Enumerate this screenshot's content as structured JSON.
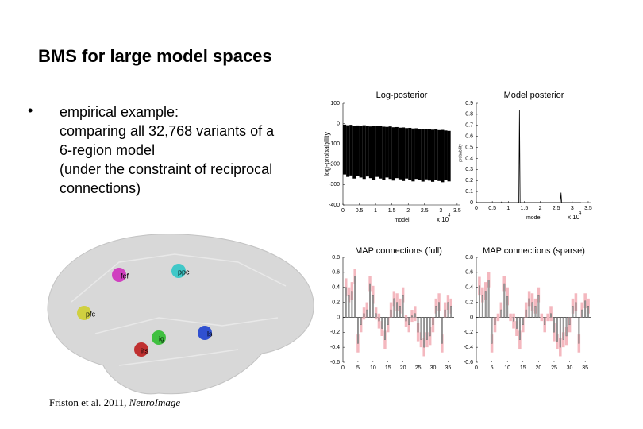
{
  "title": "BMS for large model spaces",
  "bullet": {
    "lines": [
      "empirical example:",
      "comparing all 32,768 variants of a",
      "6-region model",
      "(under the constraint of reciprocal",
      "connections)"
    ]
  },
  "citation": {
    "text": "Friston et al. 2011, ",
    "journal": "NeuroImage"
  },
  "brain": {
    "nodes": [
      {
        "label": "fef"
      },
      {
        "label": "ppc"
      },
      {
        "label": "pfc"
      },
      {
        "label": "ig"
      },
      {
        "label": "ls"
      },
      {
        "label": "its"
      }
    ]
  },
  "chart_data": [
    {
      "type": "area",
      "title": "Log-posterior",
      "xlabel": "model",
      "ylabel": "log-probability",
      "x_multiplier": "x 10",
      "x_exponent": "4",
      "x": [
        0,
        0.1,
        0.2,
        0.3,
        0.4,
        0.5,
        0.6,
        0.7,
        0.8,
        0.9,
        1.0,
        1.1,
        1.2,
        1.3,
        1.4,
        1.5,
        1.6,
        1.7,
        1.8,
        1.9,
        2.0,
        2.1,
        2.2,
        2.3,
        2.4,
        2.5,
        2.6,
        2.7,
        2.8,
        2.9,
        3.0,
        3.1,
        3.2
      ],
      "series": [
        {
          "color": "#000000",
          "values": [
            -5,
            -8,
            -6,
            -10,
            -9,
            -12,
            -8,
            -11,
            -14,
            -10,
            -13,
            -12,
            -15,
            -16,
            -14,
            -18,
            -17,
            -20,
            -19,
            -22,
            -21,
            -24,
            -23,
            -26,
            -25,
            -28,
            -27,
            -30,
            -29,
            -32,
            -31,
            -34,
            -36
          ]
        },
        {
          "color": "#000000",
          "values": [
            -250,
            -262,
            -255,
            -270,
            -258,
            -265,
            -272,
            -260,
            -268,
            -275,
            -262,
            -270,
            -278,
            -265,
            -272,
            -280,
            -268,
            -274,
            -282,
            -270,
            -276,
            -284,
            -272,
            -278,
            -285,
            -274,
            -280,
            -286,
            -276,
            -282,
            -288,
            -278,
            -284
          ]
        }
      ],
      "xlim": [
        0,
        3.6
      ],
      "xticks": [
        0,
        0.5,
        1,
        1.5,
        2,
        2.5,
        3,
        3.5
      ],
      "ylim": [
        -400,
        100
      ],
      "yticks": [
        -400,
        -300,
        -200,
        -100,
        0,
        100
      ]
    },
    {
      "type": "line",
      "title": "Model posterior",
      "xlabel": "model",
      "ylabel": "probability",
      "x_multiplier": "x 10",
      "x_exponent": "4",
      "x": [
        0,
        0.78,
        0.8,
        0.82,
        1.33,
        1.35,
        1.37,
        2.63,
        2.65,
        2.67,
        3.2768
      ],
      "series": [
        {
          "color": "#000000",
          "values": [
            0,
            0,
            0.01,
            0,
            0,
            0.84,
            0,
            0,
            0.09,
            0,
            0
          ]
        }
      ],
      "xlim": [
        0,
        3.6
      ],
      "xticks": [
        0,
        0.5,
        1,
        1.5,
        2,
        2.5,
        3,
        3.5
      ],
      "ylim": [
        0,
        0.9
      ],
      "yticks": [
        0,
        0.1,
        0.2,
        0.3,
        0.4,
        0.5,
        0.6,
        0.7,
        0.8,
        0.9
      ]
    },
    {
      "type": "bar",
      "title": "MAP connections (full)",
      "color": "#a0a0a0",
      "error_color": "#f4b8bf",
      "x": [
        1,
        2,
        3,
        4,
        5,
        6,
        7,
        8,
        9,
        10,
        11,
        12,
        13,
        14,
        15,
        16,
        17,
        18,
        19,
        20,
        21,
        22,
        23,
        24,
        25,
        26,
        27,
        28,
        29,
        30,
        31,
        32,
        33,
        34,
        35,
        36
      ],
      "values": [
        0.4,
        0.3,
        0.35,
        0.55,
        -0.35,
        -0.1,
        0.05,
        0.1,
        0.45,
        0.3,
        0.05,
        -0.05,
        -0.15,
        -0.3,
        -0.1,
        0.1,
        0.25,
        0.2,
        0.15,
        0.3,
        -0.05,
        -0.1,
        0.02,
        0.05,
        -0.2,
        -0.3,
        -0.4,
        -0.3,
        -0.25,
        -0.1,
        0.15,
        0.2,
        -0.35,
        0.1,
        0.2,
        0.15
      ],
      "errors": [
        0.12,
        0.1,
        0.12,
        0.1,
        0.12,
        0.1,
        0.08,
        0.1,
        0.1,
        0.12,
        0.08,
        0.1,
        0.1,
        0.12,
        0.1,
        0.1,
        0.1,
        0.12,
        0.1,
        0.1,
        0.08,
        0.1,
        0.08,
        0.1,
        0.12,
        0.1,
        0.12,
        0.1,
        0.12,
        0.1,
        0.1,
        0.12,
        0.12,
        0.1,
        0.1,
        0.1
      ],
      "xlim": [
        0,
        37
      ],
      "xticks": [
        0,
        5,
        10,
        15,
        20,
        25,
        30,
        35
      ],
      "ylim": [
        -0.6,
        0.8
      ],
      "yticks": [
        -0.6,
        -0.4,
        -0.2,
        0,
        0.2,
        0.4,
        0.6,
        0.8
      ]
    },
    {
      "type": "bar",
      "title": "MAP connections (sparse)",
      "color": "#a0a0a0",
      "error_color": "#f4b8bf",
      "x": [
        1,
        2,
        3,
        4,
        5,
        6,
        7,
        8,
        9,
        10,
        11,
        12,
        13,
        14,
        15,
        16,
        17,
        18,
        19,
        20,
        21,
        22,
        23,
        24,
        25,
        26,
        27,
        28,
        29,
        30,
        31,
        32,
        33,
        34,
        35,
        36
      ],
      "values": [
        0.42,
        0.3,
        0.35,
        0.5,
        -0.35,
        -0.1,
        0,
        0.1,
        0.45,
        0.28,
        0,
        -0.05,
        -0.15,
        -0.3,
        -0.1,
        0.1,
        0.25,
        0.2,
        0.15,
        0.3,
        0,
        -0.1,
        0,
        0.05,
        -0.2,
        -0.32,
        -0.4,
        -0.3,
        -0.25,
        -0.1,
        0.15,
        0.2,
        -0.35,
        0.1,
        0.22,
        0.15
      ],
      "errors": [
        0.12,
        0.1,
        0.12,
        0.1,
        0.12,
        0.1,
        0.05,
        0.1,
        0.1,
        0.12,
        0.05,
        0.1,
        0.1,
        0.12,
        0.1,
        0.1,
        0.1,
        0.12,
        0.1,
        0.1,
        0.05,
        0.1,
        0.05,
        0.1,
        0.12,
        0.1,
        0.12,
        0.1,
        0.12,
        0.1,
        0.1,
        0.12,
        0.12,
        0.1,
        0.1,
        0.1
      ],
      "xlim": [
        0,
        37
      ],
      "xticks": [
        0,
        5,
        10,
        15,
        20,
        25,
        30,
        35
      ],
      "ylim": [
        -0.6,
        0.8
      ],
      "yticks": [
        -0.6,
        -0.4,
        -0.2,
        0,
        0.2,
        0.4,
        0.6,
        0.8
      ]
    }
  ]
}
